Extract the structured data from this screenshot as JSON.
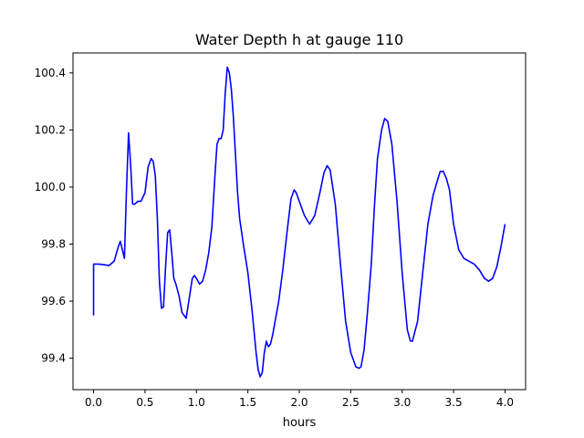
{
  "chart_data": {
    "type": "line",
    "title": "Water Depth h at gauge 110",
    "xlabel": "hours",
    "ylabel": "",
    "xlim": [
      -0.2,
      4.2
    ],
    "ylim": [
      99.29,
      100.47
    ],
    "xticks": [
      0.0,
      0.5,
      1.0,
      1.5,
      2.0,
      2.5,
      3.0,
      3.5,
      4.0
    ],
    "xtick_labels": [
      "0.0",
      "0.5",
      "1.0",
      "1.5",
      "2.0",
      "2.5",
      "3.0",
      "3.5",
      "4.0"
    ],
    "yticks": [
      99.4,
      99.6,
      99.8,
      100.0,
      100.2,
      100.4
    ],
    "ytick_labels": [
      "99.4",
      "99.6",
      "99.8",
      "100.0",
      "100.2",
      "100.4"
    ],
    "grid": false,
    "series": [
      {
        "color": "#0000ff",
        "x": [
          0.0,
          0.0,
          0.05,
          0.1,
          0.15,
          0.2,
          0.24,
          0.26,
          0.28,
          0.3,
          0.32,
          0.34,
          0.36,
          0.38,
          0.4,
          0.43,
          0.46,
          0.5,
          0.53,
          0.56,
          0.58,
          0.6,
          0.62,
          0.64,
          0.66,
          0.68,
          0.7,
          0.72,
          0.74,
          0.76,
          0.78,
          0.8,
          0.83,
          0.86,
          0.9,
          0.93,
          0.96,
          0.98,
          1.0,
          1.03,
          1.06,
          1.09,
          1.12,
          1.15,
          1.18,
          1.2,
          1.22,
          1.24,
          1.26,
          1.28,
          1.3,
          1.32,
          1.34,
          1.36,
          1.38,
          1.4,
          1.42,
          1.44,
          1.46,
          1.5,
          1.54,
          1.58,
          1.6,
          1.62,
          1.64,
          1.66,
          1.68,
          1.7,
          1.72,
          1.74,
          1.76,
          1.8,
          1.84,
          1.88,
          1.92,
          1.95,
          1.97,
          2.0,
          2.05,
          2.1,
          2.15,
          2.2,
          2.24,
          2.27,
          2.3,
          2.35,
          2.4,
          2.45,
          2.5,
          2.55,
          2.58,
          2.6,
          2.63,
          2.66,
          2.7,
          2.73,
          2.76,
          2.8,
          2.83,
          2.86,
          2.9,
          2.95,
          3.0,
          3.05,
          3.08,
          3.1,
          3.15,
          3.2,
          3.25,
          3.3,
          3.34,
          3.37,
          3.4,
          3.43,
          3.46,
          3.5,
          3.55,
          3.6,
          3.65,
          3.7,
          3.75,
          3.8,
          3.84,
          3.88,
          3.92,
          3.96,
          4.0
        ],
        "y": [
          99.55,
          99.73,
          99.73,
          99.728,
          99.725,
          99.74,
          99.79,
          99.81,
          99.78,
          99.75,
          99.99,
          100.19,
          100.08,
          99.94,
          99.94,
          99.95,
          99.95,
          99.98,
          100.07,
          100.1,
          100.09,
          100.04,
          99.89,
          99.67,
          99.575,
          99.58,
          99.72,
          99.84,
          99.85,
          99.77,
          99.68,
          99.66,
          99.62,
          99.56,
          99.54,
          99.61,
          99.68,
          99.69,
          99.68,
          99.66,
          99.67,
          99.71,
          99.77,
          99.86,
          100.04,
          100.15,
          100.17,
          100.17,
          100.2,
          100.33,
          100.42,
          100.4,
          100.34,
          100.24,
          100.11,
          99.98,
          99.89,
          99.84,
          99.79,
          99.7,
          99.57,
          99.42,
          99.36,
          99.335,
          99.35,
          99.42,
          99.46,
          99.44,
          99.45,
          99.48,
          99.52,
          99.6,
          99.71,
          99.84,
          99.96,
          99.99,
          99.98,
          99.95,
          99.9,
          99.87,
          99.9,
          99.98,
          100.05,
          100.075,
          100.06,
          99.94,
          99.73,
          99.53,
          99.42,
          99.37,
          99.365,
          99.37,
          99.43,
          99.55,
          99.73,
          99.93,
          100.1,
          100.2,
          100.24,
          100.23,
          100.15,
          99.95,
          99.7,
          99.5,
          99.46,
          99.46,
          99.53,
          99.7,
          99.87,
          99.97,
          100.02,
          100.055,
          100.055,
          100.03,
          99.99,
          99.87,
          99.78,
          99.75,
          99.74,
          99.73,
          99.71,
          99.68,
          99.67,
          99.68,
          99.72,
          99.79,
          99.87
        ]
      }
    ]
  }
}
